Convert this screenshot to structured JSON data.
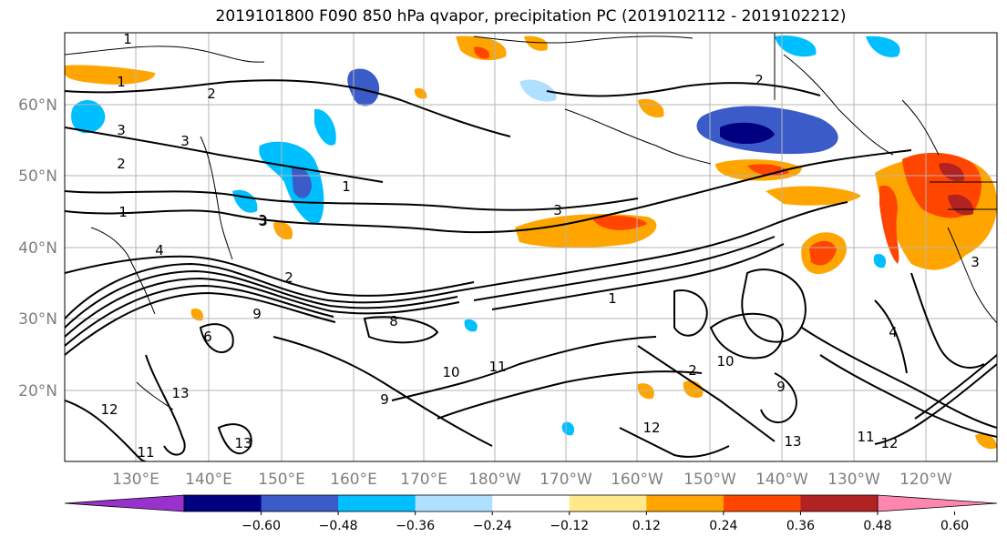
{
  "title": "2019101800 F090 850 hPa qvapor, precipitation PC (2019102112 - 2019102212)",
  "lat_labels": [
    "60°N",
    "50°N",
    "40°N",
    "30°N",
    "20°N"
  ],
  "lon_labels": [
    "130°E",
    "140°E",
    "150°E",
    "160°E",
    "170°E",
    "180°W",
    "170°W",
    "160°W",
    "150°W",
    "140°W",
    "130°W",
    "120°W"
  ],
  "colorbar": {
    "colors": [
      "#9932cc",
      "#000080",
      "#3a5bc8",
      "#00bfff",
      "#b0e0ff",
      "#ffffff",
      "#ffe98a",
      "#ffa500",
      "#ff4500",
      "#b22222",
      "#ff86ae"
    ],
    "tick_labels": [
      "−0.60",
      "−0.48",
      "−0.36",
      "−0.24",
      "−0.12",
      "0.12",
      "0.24",
      "0.36",
      "0.48",
      "0.60"
    ]
  },
  "contour_labels": [
    "1",
    "1",
    "2",
    "2",
    "3",
    "3",
    "1",
    "4",
    "2",
    "3",
    "9",
    "6",
    "8",
    "10",
    "11",
    "9",
    "13",
    "12",
    "13",
    "11",
    "1",
    "2",
    "3",
    "3",
    "4",
    "9",
    "10",
    "12",
    "13",
    "11",
    "12",
    "2",
    "3",
    "1"
  ]
}
